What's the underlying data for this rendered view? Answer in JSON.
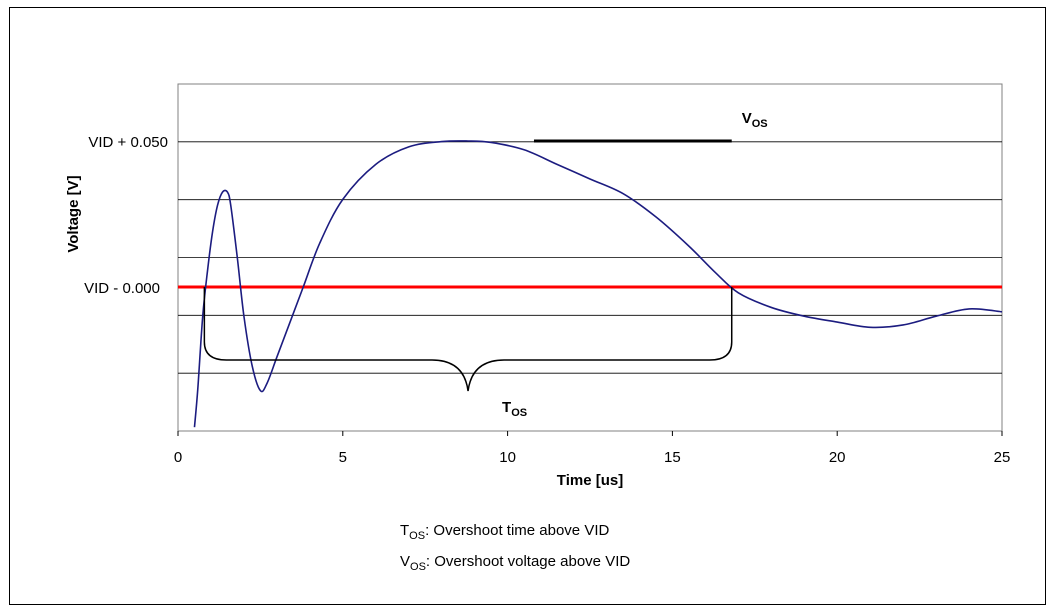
{
  "chart_data": {
    "type": "line",
    "xlabel": "Time [us]",
    "ylabel": "Voltage [V]",
    "xlim": [
      0,
      25
    ],
    "x_ticks": [
      0,
      5,
      10,
      15,
      20,
      25
    ],
    "y_tick_labels": [
      "VID + 0.050",
      "VID - 0.000"
    ],
    "y_gridlines": 6,
    "grid": true,
    "series": [
      {
        "color": "#1c1c80",
        "points": [
          [
            0.5,
            -0.048
          ],
          [
            0.6,
            -0.035
          ],
          [
            0.75,
            -0.01
          ],
          [
            0.9,
            0.006
          ],
          [
            1.05,
            0.019
          ],
          [
            1.2,
            0.028
          ],
          [
            1.35,
            0.0325
          ],
          [
            1.5,
            0.0325
          ],
          [
            1.6,
            0.028
          ],
          [
            1.8,
            0.01
          ],
          [
            2.0,
            -0.01
          ],
          [
            2.25,
            -0.027
          ],
          [
            2.5,
            -0.0355
          ],
          [
            2.7,
            -0.033
          ],
          [
            3.0,
            -0.024
          ],
          [
            3.4,
            -0.012
          ],
          [
            3.8,
            0.0
          ],
          [
            4.3,
            0.015
          ],
          [
            5.0,
            0.03
          ],
          [
            6.0,
            0.042
          ],
          [
            7.0,
            0.048
          ],
          [
            8.0,
            0.0498
          ],
          [
            8.8,
            0.05
          ],
          [
            9.5,
            0.0495
          ],
          [
            10.5,
            0.047
          ],
          [
            11.5,
            0.042
          ],
          [
            12.5,
            0.037
          ],
          [
            13.5,
            0.032
          ],
          [
            14.5,
            0.024
          ],
          [
            15.5,
            0.014
          ],
          [
            16.3,
            0.005
          ],
          [
            17.0,
            -0.002
          ],
          [
            18.0,
            -0.007
          ],
          [
            19.0,
            -0.01
          ],
          [
            20.0,
            -0.012
          ],
          [
            21.0,
            -0.0138
          ],
          [
            22.0,
            -0.013
          ],
          [
            23.0,
            -0.01
          ],
          [
            24.0,
            -0.0075
          ],
          [
            25.0,
            -0.0085
          ]
        ]
      }
    ],
    "reference_line": {
      "y": 0.0,
      "color": "#ff0000"
    },
    "vos_marker": {
      "x_start": 10.8,
      "x_end": 16.8,
      "y": 0.05,
      "label": "V",
      "label_sub": "OS"
    },
    "tos_brace": {
      "x_start": 0.8,
      "x_end": 16.8,
      "label": "T",
      "label_sub": "OS"
    },
    "notes": [
      {
        "main": "T",
        "sub": "OS",
        "text": ": Overshoot time above VID"
      },
      {
        "main": "V",
        "sub": "OS",
        "text": ": Overshoot voltage above VID"
      }
    ]
  }
}
